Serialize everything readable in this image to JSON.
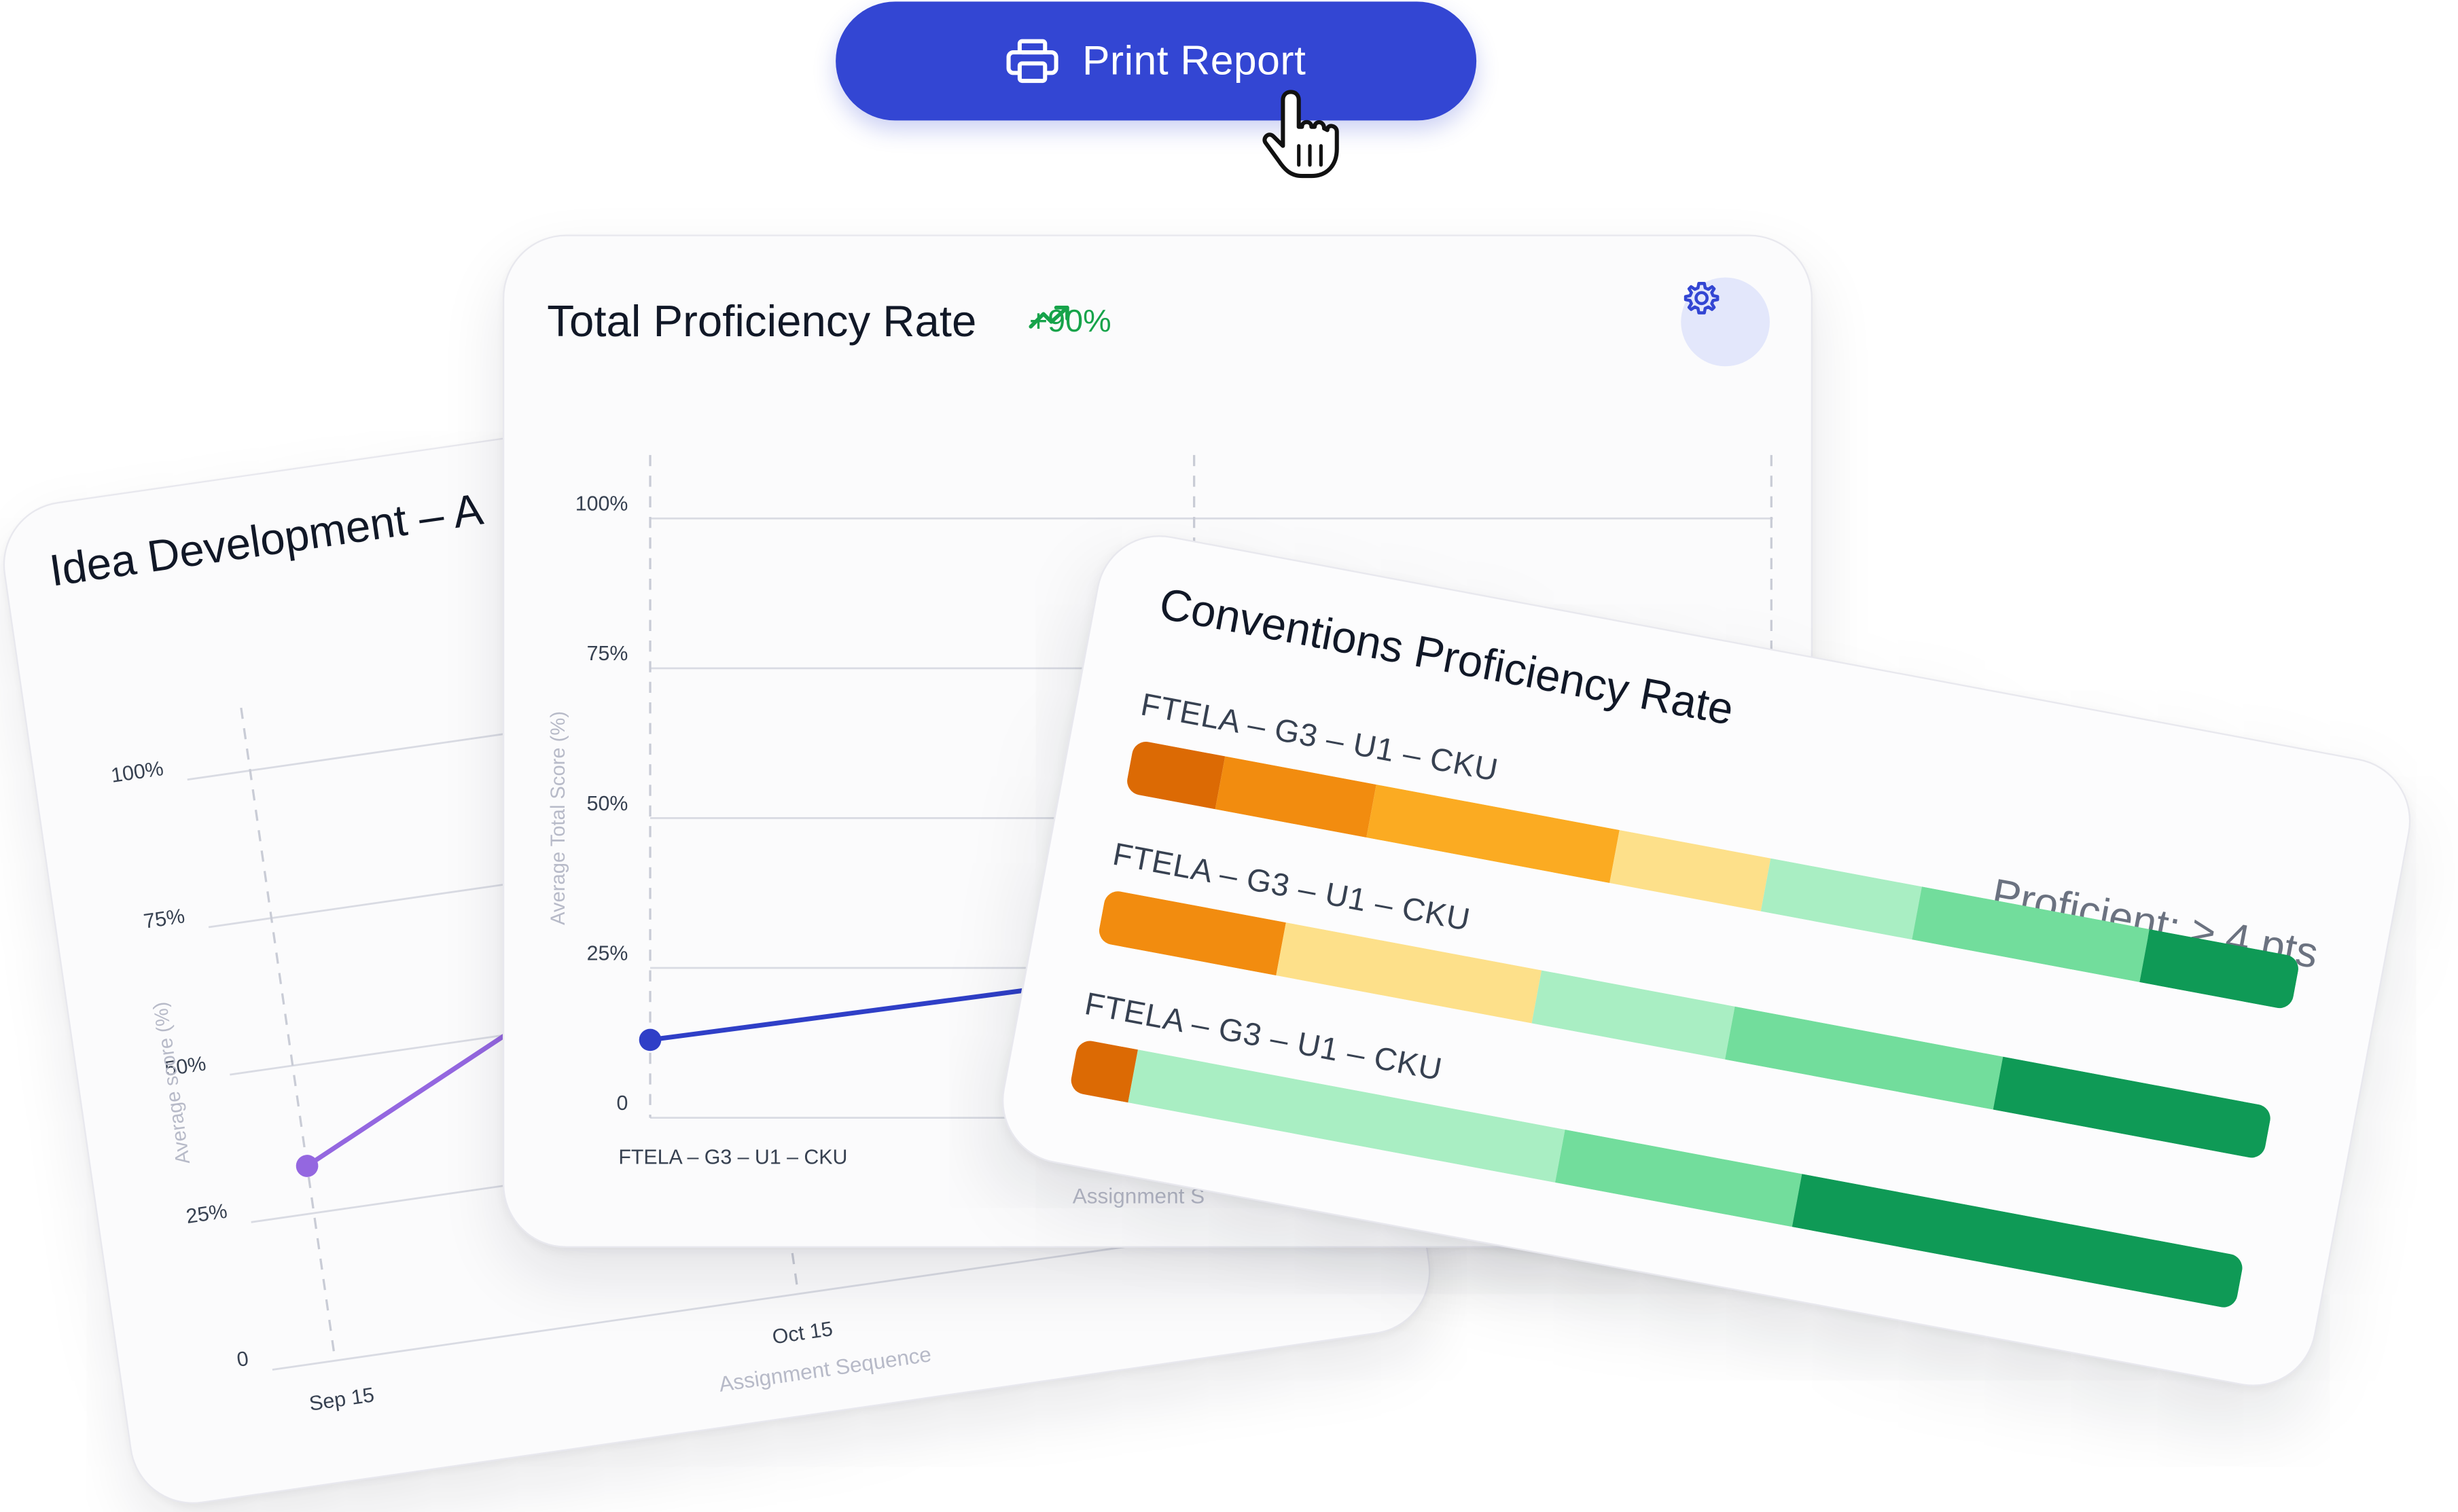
{
  "print_button": {
    "label": "Print Report",
    "icon": "printer-icon"
  },
  "colors": {
    "primary": "#3346d3",
    "idea_line": "#9467e0",
    "total_line": "#2f3fc7",
    "trend_green": "#16a34a",
    "bucket_colors": [
      "#dc6a04",
      "#f28c0f",
      "#fbab22",
      "#fde08a",
      "#a9eec3",
      "#72dd9c",
      "#0f9a56"
    ]
  },
  "chart_data": [
    {
      "id": "idea_development",
      "type": "line",
      "title": "Idea Development – A",
      "xlabel": "Assignment Sequence",
      "ylabel": "Average score (%)",
      "x": [
        "Sep 15",
        "Oct 15"
      ],
      "ylim": [
        0,
        100
      ],
      "yticks": [
        "0",
        "25%",
        "50%",
        "75%",
        "100%"
      ],
      "series": [
        {
          "values": [
            33,
            70
          ]
        }
      ],
      "grid": true
    },
    {
      "id": "total_proficiency",
      "type": "line",
      "title": "Total Proficiency Rate",
      "trend": "+90%",
      "xlabel": "Assignment S",
      "ylabel": "Average Total Score (%)",
      "x": [
        "FTELA – G3 – U1 – CKU",
        ""
      ],
      "ylim": [
        0,
        100
      ],
      "yticks": [
        "0",
        "25%",
        "50%",
        "75%",
        "100%"
      ],
      "series": [
        {
          "values": [
            13,
            25
          ]
        }
      ],
      "grid": true
    },
    {
      "id": "conventions_proficiency",
      "type": "bar",
      "orientation": "horizontal-stacked",
      "title": "Conventions Proficiency Rate",
      "badge": "Proficient: ≥ 4 pts",
      "categories": [
        "FTELA – G3 – U1 – CKU",
        "FTELA – G3 – U1 – CKU",
        "FTELA – G3 – U1 – CKU"
      ],
      "segments": [
        [
          6,
          10,
          16,
          10,
          10,
          15,
          10
        ],
        [
          0,
          14,
          0,
          20,
          15,
          21,
          21
        ],
        [
          4,
          0,
          0,
          0,
          29,
          16,
          30
        ]
      ],
      "units": "% of students"
    }
  ]
}
